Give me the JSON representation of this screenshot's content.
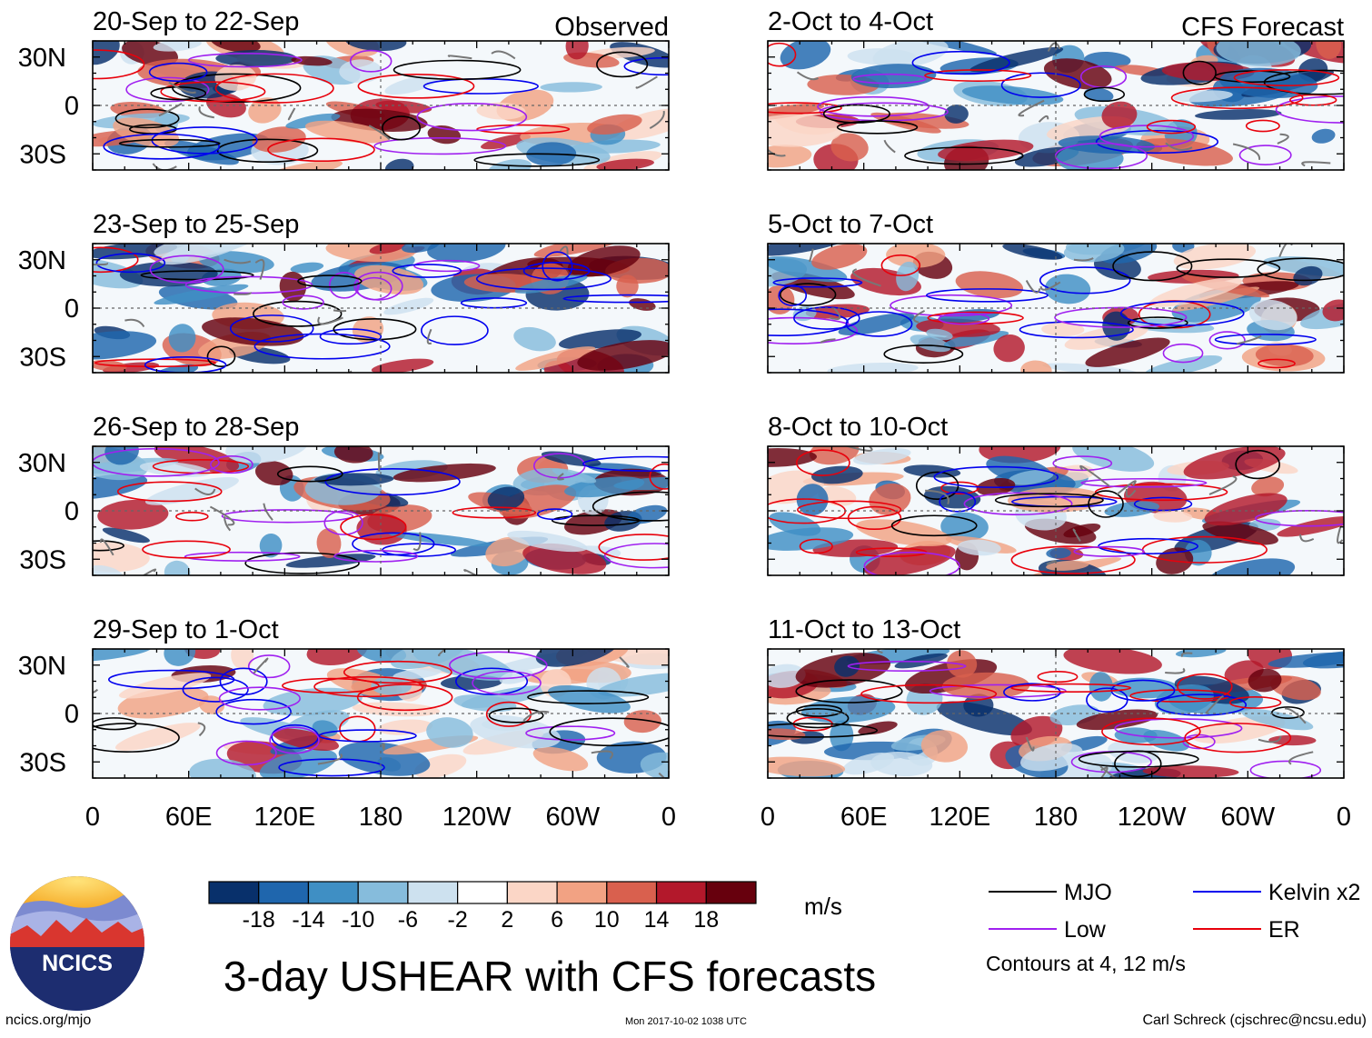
{
  "chart_data": {
    "type": "heatmap",
    "title": "3-day USHEAR with CFS forecasts",
    "column_headers": {
      "observed": "Observed",
      "forecast": "CFS Forecast"
    },
    "y_ticks": [
      "30N",
      "0",
      "30S"
    ],
    "x_ticks": [
      "0",
      "60E",
      "120E",
      "180",
      "120W",
      "60W",
      "0"
    ],
    "x_tick_lon": [
      0,
      60,
      120,
      180,
      240,
      300,
      360
    ],
    "lat_range": [
      -40,
      40
    ],
    "panels_observed": [
      {
        "label": "20-Sep to 22-Sep"
      },
      {
        "label": "23-Sep to 25-Sep"
      },
      {
        "label": "26-Sep to 28-Sep"
      },
      {
        "label": "29-Sep to 1-Oct"
      }
    ],
    "panels_forecast": [
      {
        "label": "2-Oct to 4-Oct"
      },
      {
        "label": "5-Oct to 7-Oct"
      },
      {
        "label": "8-Oct to 10-Oct"
      },
      {
        "label": "11-Oct to 13-Oct"
      }
    ],
    "colorbar": {
      "unit": "m/s",
      "labels": [
        "-18",
        "-14",
        "-10",
        "-6",
        "-2",
        "2",
        "6",
        "10",
        "14",
        "18"
      ],
      "colors": [
        "#08306b",
        "#1f66ad",
        "#3f8fc4",
        "#86bcdc",
        "#cde1ef",
        "#ffffff",
        "#fbd6c6",
        "#f2a283",
        "#d9604e",
        "#b3182b",
        "#67000d"
      ]
    },
    "legend": [
      {
        "name": "MJO",
        "color": "#000000"
      },
      {
        "name": "Kelvin x2",
        "color": "#0000ee"
      },
      {
        "name": "Low",
        "color": "#a020f0"
      },
      {
        "name": "ER",
        "color": "#e8000b"
      }
    ],
    "contour_note": "Contours at 4, 12 m/s"
  },
  "footer": {
    "logo_text": "NCICS",
    "url": "ncics.org/mjo",
    "timestamp": "Mon 2017-10-02 1038 UTC",
    "credit": "Carl Schreck (cjschrec@ncsu.edu)"
  }
}
